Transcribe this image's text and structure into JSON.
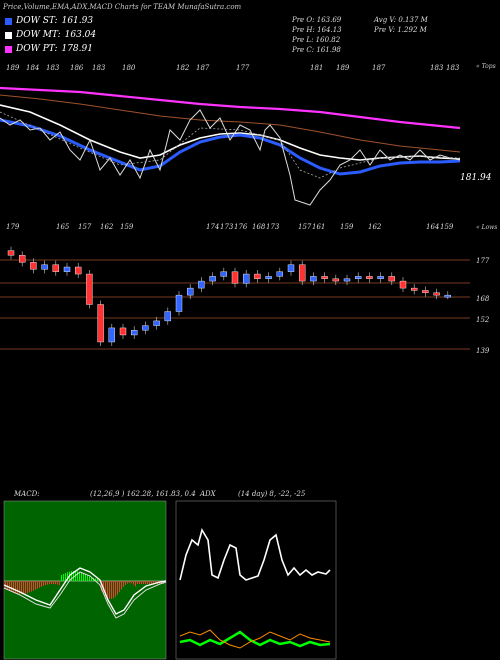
{
  "title": "Price,Volume,EMA,ADX,MACD Charts for TEAM MunafaSutra.com",
  "legend": [
    {
      "label": "DOW ST:",
      "value": "161.93",
      "color": "#2a5cff"
    },
    {
      "label": "DOW MT:",
      "value": "163.04",
      "color": "#ffffff"
    },
    {
      "label": "DOW PT:",
      "value": "178.91",
      "color": "#ff33ff"
    }
  ],
  "ohlc": {
    "open": "Pre  O: 163.69",
    "high": "Pre  H: 164.13",
    "low": "Pre  L: 160.82",
    "close": "Pre  C: 161.98",
    "avg_vol": "Avg V: 0.137 M",
    "pre_vol": "Pre  V: 1.292  M"
  },
  "top_panel": {
    "right_label": "« Tops",
    "last_price": "181.94",
    "top_labels": [
      "189",
      "184",
      "183",
      "186",
      "183",
      "180",
      "182",
      "187",
      "177",
      "181",
      "189",
      "187",
      "183",
      "183"
    ]
  },
  "lows_panel": {
    "right_label": "« Lows",
    "low_labels": [
      "179",
      "165",
      "157",
      "162",
      "159",
      "174",
      "173",
      "176",
      "168",
      "173",
      "157",
      "161",
      "159",
      "162",
      "164",
      "159"
    ],
    "price_levels": [
      "177",
      "168",
      "152",
      "139"
    ]
  },
  "macd": {
    "label": "MACD:",
    "values": "(12,26,9 ) 162.28, 161.83, 0.4"
  },
  "adx": {
    "label": "ADX",
    "values": "(14  day) 8, -22, -25"
  },
  "colors": {
    "ema_blue": "#2a5cff",
    "ema_magenta": "#ff33ff",
    "ema_brown": "#a0522d",
    "up": "#3366ff",
    "down": "#ff3333",
    "macd_green": "#006400"
  },
  "chart_data": {
    "type": "candlestick",
    "price_levels": [
      177,
      168,
      152,
      139
    ],
    "candles_approx_close": [
      179,
      176,
      173,
      175,
      172,
      174,
      171,
      158,
      142,
      148,
      145,
      147,
      149,
      151,
      155,
      162,
      165,
      168,
      170,
      172,
      167,
      171,
      169,
      170,
      172,
      175,
      168,
      170,
      169,
      168,
      169,
      170,
      169,
      170,
      168,
      165,
      164,
      163,
      162,
      162
    ]
  }
}
